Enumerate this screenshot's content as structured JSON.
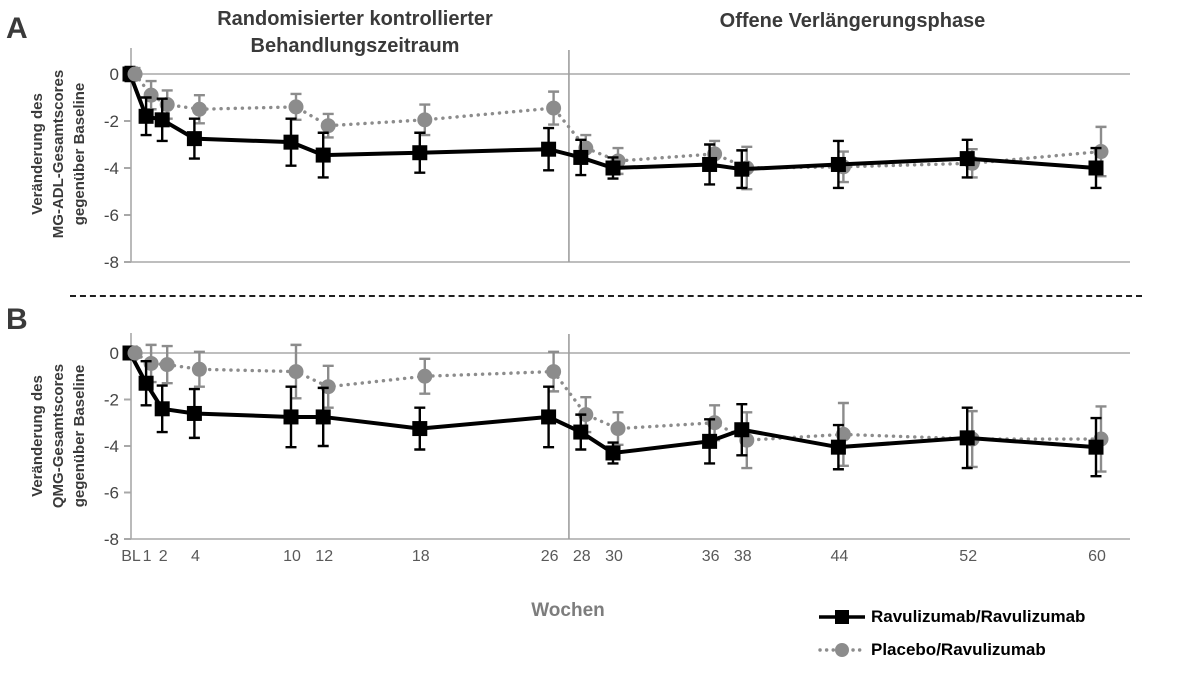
{
  "headers": {
    "rct_line1": "Randomisierter kontrollierter",
    "rct_line2": "Behandlungszeitraum",
    "ole": "Offene Verlängerungsphase"
  },
  "xlabel": "Wochen",
  "legend": [
    {
      "label": "Ravulizumab/Ravulizumab",
      "marker": "square",
      "line": "solid",
      "color": "#000000"
    },
    {
      "label": "Placebo/Ravulizumab",
      "marker": "circle",
      "line": "dotted",
      "color": "#8c8c8c"
    }
  ],
  "colors": {
    "black_series": "#000000",
    "gray_series": "#8c8c8c",
    "axis": "#a8a8a8",
    "divider": "#9e9e9e",
    "ytick_text": "#454545",
    "xtick_text": "#595959"
  },
  "chart_data": [
    {
      "panel_label": "A",
      "type": "line",
      "ylabel_lines": [
        "Veränderung des",
        "MG-ADL-Gesamtscores",
        "gegenüber Baseline"
      ],
      "yticks": [
        0,
        -2,
        -4,
        -6,
        -8
      ],
      "ylim": [
        -8,
        0.6
      ],
      "x_weeks": [
        0,
        1,
        2,
        4,
        10,
        12,
        18,
        26,
        28,
        30,
        36,
        38,
        44,
        52,
        60
      ],
      "xtick_labels": [
        "BL",
        "1",
        "2",
        "4",
        "10",
        "12",
        "18",
        "26",
        "28",
        "30",
        "36",
        "38",
        "44",
        "52",
        "60"
      ],
      "divider_week": 27.2,
      "legend_position": "none",
      "grid": "zero-line-only",
      "series": [
        {
          "name": "Ravulizumab/Ravulizumab",
          "marker": "square",
          "line": "solid",
          "color": "#000000",
          "values": [
            0,
            -1.8,
            -1.95,
            -2.75,
            -2.9,
            -3.45,
            -3.35,
            -3.2,
            -3.55,
            -4.0,
            -3.85,
            -4.05,
            -3.85,
            -3.6,
            -4.0
          ],
          "err": [
            0.3,
            0.8,
            0.9,
            0.85,
            1.0,
            0.95,
            0.85,
            0.9,
            0.75,
            0.45,
            0.85,
            0.8,
            1.0,
            0.8,
            0.85
          ]
        },
        {
          "name": "Placebo/Ravulizumab",
          "marker": "circle",
          "line": "dotted",
          "color": "#8c8c8c",
          "values": [
            0,
            -0.9,
            -1.3,
            -1.5,
            -1.4,
            -2.2,
            -1.95,
            -1.45,
            -3.15,
            -3.7,
            -3.4,
            -4.0,
            -3.95,
            -3.8,
            -3.3
          ],
          "err": [
            0.25,
            0.6,
            0.6,
            0.6,
            0.55,
            0.5,
            0.65,
            0.7,
            0.55,
            0.55,
            0.55,
            0.9,
            0.65,
            0.6,
            1.05
          ]
        }
      ]
    },
    {
      "panel_label": "B",
      "type": "line",
      "ylabel_lines": [
        "Veränderung des",
        "QMG-Gesamtscores",
        "gegenüber Baseline"
      ],
      "yticks": [
        0,
        -2,
        -4,
        -6,
        -8
      ],
      "ylim": [
        -8,
        0.6
      ],
      "x_weeks": [
        0,
        1,
        2,
        4,
        10,
        12,
        18,
        26,
        28,
        30,
        36,
        38,
        44,
        52,
        60
      ],
      "xtick_labels": [
        "BL",
        "1",
        "2",
        "4",
        "10",
        "12",
        "18",
        "26",
        "28",
        "30",
        "36",
        "38",
        "44",
        "52",
        "60"
      ],
      "divider_week": 27.2,
      "legend_position": "below-right",
      "grid": "zero-line-only",
      "series": [
        {
          "name": "Ravulizumab/Ravulizumab",
          "marker": "square",
          "line": "solid",
          "color": "#000000",
          "values": [
            0,
            -1.3,
            -2.4,
            -2.6,
            -2.75,
            -2.75,
            -3.25,
            -2.75,
            -3.4,
            -4.3,
            -3.8,
            -3.3,
            -4.05,
            -3.65,
            -4.05
          ],
          "err": [
            0.25,
            0.95,
            1.0,
            1.05,
            1.3,
            1.25,
            0.9,
            1.3,
            0.75,
            0.45,
            0.95,
            1.1,
            0.95,
            1.3,
            1.25
          ]
        },
        {
          "name": "Placebo/Ravulizumab",
          "marker": "circle",
          "line": "dotted",
          "color": "#8c8c8c",
          "values": [
            0,
            -0.45,
            -0.5,
            -0.7,
            -0.8,
            -1.45,
            -1.0,
            -0.8,
            -2.65,
            -3.25,
            -3.0,
            -3.75,
            -3.5,
            -3.7,
            -3.7
          ],
          "err": [
            0.2,
            0.8,
            0.8,
            0.75,
            1.15,
            0.9,
            0.75,
            0.85,
            0.75,
            0.7,
            0.75,
            1.2,
            1.35,
            1.2,
            1.4
          ]
        }
      ]
    }
  ]
}
